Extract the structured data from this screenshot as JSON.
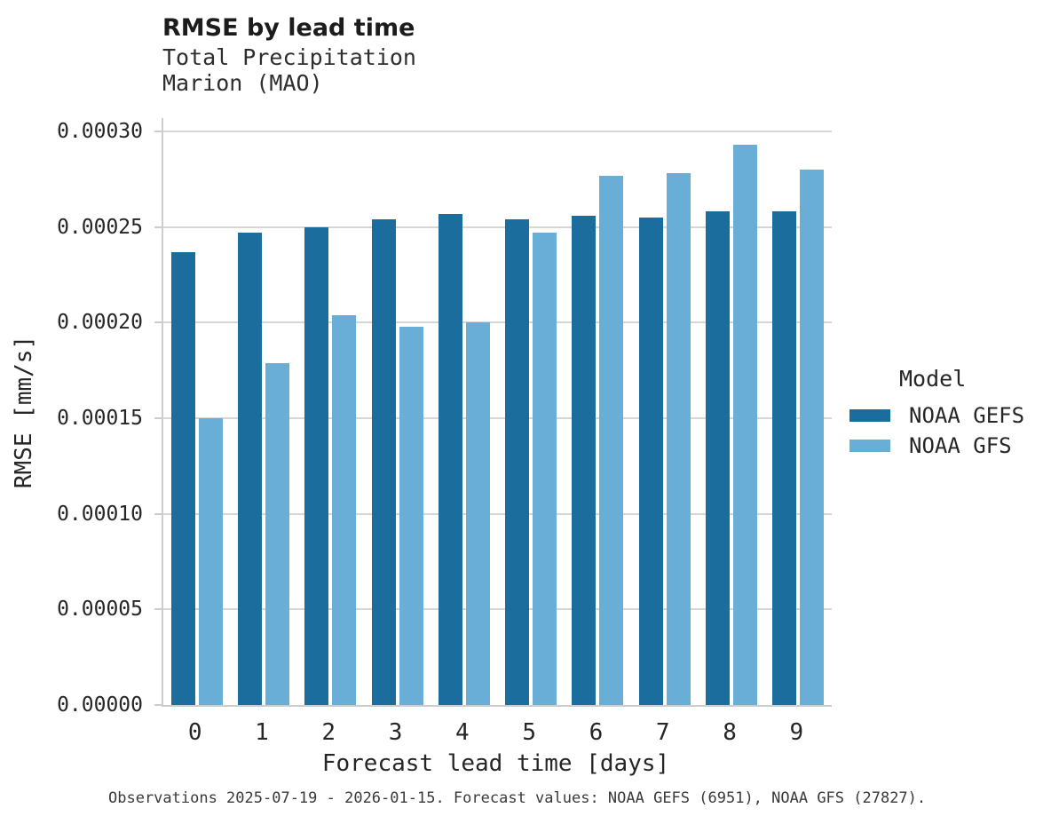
{
  "header": {
    "title": "RMSE by lead time",
    "subtitle_line1": "Total Precipitation",
    "subtitle_line2": "Marion (MAO)"
  },
  "axes": {
    "x_title": "Forecast lead time [days]",
    "y_title": "RMSE [mm/s]"
  },
  "legend": {
    "title": "Model"
  },
  "caption": "Observations 2025-07-19 - 2026-01-15. Forecast values: NOAA GEFS (6951), NOAA GFS (27827).",
  "colors": {
    "noaa_gefs": "#1a6d9c",
    "noaa_gfs": "#69aed7",
    "gridline": "#d6d6d6",
    "axis_line": "#cdcdcd",
    "text": "#262626"
  },
  "chart_data": {
    "type": "bar",
    "title": "RMSE by lead time",
    "subtitle": [
      "Total Precipitation",
      "Marion (MAO)"
    ],
    "xlabel": "Forecast lead time [days]",
    "ylabel": "RMSE [mm/s]",
    "categories": [
      "0",
      "1",
      "2",
      "3",
      "4",
      "5",
      "6",
      "7",
      "8",
      "9"
    ],
    "series": [
      {
        "name": "NOAA GEFS",
        "color": "#1a6d9c",
        "values": [
          0.000237,
          0.000247,
          0.00025,
          0.000254,
          0.000257,
          0.000254,
          0.000256,
          0.000255,
          0.000258,
          0.000258
        ]
      },
      {
        "name": "NOAA GFS",
        "color": "#69aed7",
        "values": [
          0.00015,
          0.000179,
          0.000204,
          0.000198,
          0.0002,
          0.000247,
          0.000277,
          0.000278,
          0.000293,
          0.00028
        ]
      }
    ],
    "ylim": [
      0,
      0.000307
    ],
    "yticks": [
      0.0,
      5e-05,
      0.0001,
      0.00015,
      0.0002,
      0.00025,
      0.0003
    ],
    "ytick_format_decimals": 5,
    "grid": "horizontal",
    "legend_title": "Model",
    "legend_position": "right-middle",
    "caption": "Observations 2025-07-19 - 2026-01-15. Forecast values: NOAA GEFS (6951), NOAA GFS (27827)."
  }
}
